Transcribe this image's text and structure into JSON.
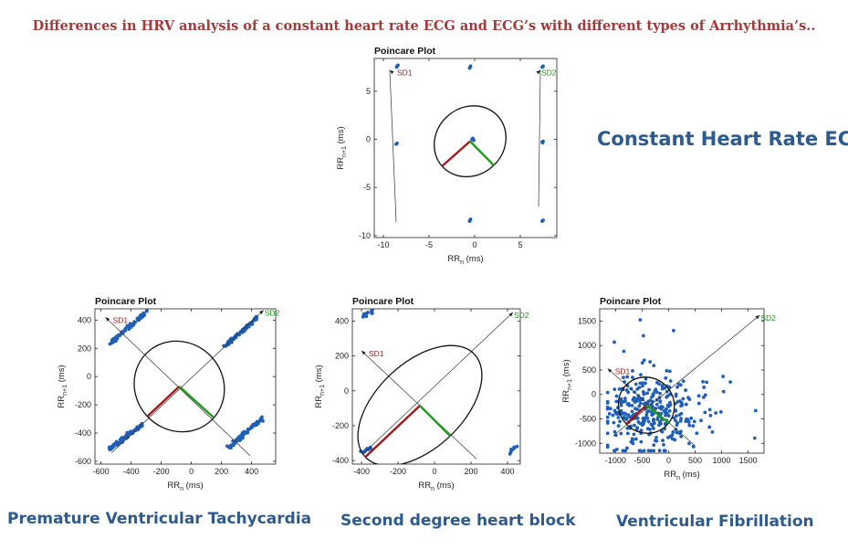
{
  "page_title": "Differences in HRV analysis of a constant heart rate ECG and ECG’s with different types of Arrhythmia’s..",
  "captions": {
    "constant": "Constant Heart Rate ECG",
    "pvt": "Premature Ventricular Tachycardia",
    "shb": "Second degree heart block",
    "vf": "Ventricular Fibrillation"
  },
  "colors": {
    "title": "#a23a3a",
    "caption": "#2e5a8c",
    "points": "#1f5fb5",
    "sd1": "#a01818",
    "sd2": "#1e9a1e",
    "sd1_label": "#8b1a1a",
    "sd2_label": "#1e8f1e"
  },
  "chart_data": [
    {
      "id": "constant",
      "type": "scatter",
      "title": "Poincare Plot",
      "xlabel_main": "RR",
      "xlabel_sub": "n",
      "xlabel_unit": " (ms)",
      "ylabel_main": "RR",
      "ylabel_sub": "n+1",
      "ylabel_unit": " (ms)",
      "xlim": [
        -11,
        9
      ],
      "ylim": [
        -10.2,
        8.4
      ],
      "xticks": [
        -10,
        -5,
        0,
        5
      ],
      "yticks": [
        -10,
        -5,
        0,
        5
      ],
      "center": [
        -0.5,
        -0.2
      ],
      "sd1": 4.0,
      "sd2": 3.6,
      "sd1_end": [
        -9.3,
        7.2
      ],
      "sd2_end": [
        7.2,
        7.2
      ],
      "sd1_tail": [
        -8.6,
        -8.6
      ],
      "sd2_tail": [
        7.0,
        -7.0
      ],
      "sd1_label": "SD1",
      "sd2_label": "SD2",
      "points": [
        [
          -8.5,
          7.6
        ],
        [
          -8.4,
          7.7
        ],
        [
          -8.55,
          7.5
        ],
        [
          -0.5,
          7.5
        ],
        [
          -0.45,
          7.6
        ],
        [
          -0.55,
          7.4
        ],
        [
          7.5,
          7.6
        ],
        [
          7.4,
          7.5
        ],
        [
          -8.6,
          -0.5
        ],
        [
          -8.5,
          -0.4
        ],
        [
          7.4,
          -0.3
        ],
        [
          7.5,
          -0.2
        ],
        [
          7.45,
          -0.35
        ],
        [
          -0.5,
          -8.4
        ],
        [
          -0.45,
          -8.3
        ],
        [
          -0.55,
          -8.5
        ],
        [
          7.4,
          -8.5
        ],
        [
          7.5,
          -8.4
        ],
        [
          -0.3,
          0.0
        ],
        [
          -0.2,
          0.1
        ],
        [
          -0.1,
          -0.1
        ]
      ]
    },
    {
      "id": "pvt",
      "type": "scatter",
      "title": "Poincare Plot",
      "xlabel_main": "RR",
      "xlabel_sub": "n",
      "xlabel_unit": " (ms)",
      "ylabel_main": "RR",
      "ylabel_sub": "n+1",
      "ylabel_unit": " (ms)",
      "xlim": [
        -640,
        560
      ],
      "ylim": [
        -620,
        480
      ],
      "xticks": [
        -600,
        -400,
        -200,
        0,
        200,
        400
      ],
      "yticks": [
        -600,
        -400,
        -200,
        0,
        200,
        400
      ],
      "center": [
        -80,
        -70
      ],
      "sd1": 300,
      "sd2": 320,
      "sd1_end": [
        -570,
        420
      ],
      "sd2_end": [
        480,
        470
      ],
      "sd1_tail": [
        390,
        -560
      ],
      "sd2_tail": [
        -530,
        -540
      ],
      "sd1_label": "SD1",
      "sd2_label": "SD2",
      "clusters": [
        {
          "from": [
            -540,
            230
          ],
          "to": [
            -300,
            460
          ],
          "count": 70
        },
        {
          "from": [
            220,
            210
          ],
          "to": [
            450,
            430
          ],
          "count": 70
        },
        {
          "from": [
            -540,
            -510
          ],
          "to": [
            -310,
            -330
          ],
          "count": 70
        },
        {
          "from": [
            250,
            -500
          ],
          "to": [
            490,
            -280
          ],
          "count": 70
        }
      ]
    },
    {
      "id": "shb",
      "type": "scatter",
      "title": "Poincare Plot",
      "xlabel_main": "RR",
      "xlabel_sub": "n",
      "xlabel_unit": " (ms)",
      "ylabel_main": "RR",
      "ylabel_sub": "n+1",
      "ylabel_unit": " (ms)",
      "xlim": [
        -450,
        470
      ],
      "ylim": [
        -420,
        470
      ],
      "xticks": [
        -400,
        -200,
        0,
        200,
        400
      ],
      "yticks": [
        -400,
        -200,
        0,
        200,
        400
      ],
      "center": [
        -80,
        -85
      ],
      "sd1": 420,
      "sd2": 240,
      "sd1_end": [
        -400,
        230
      ],
      "sd2_end": [
        430,
        450
      ],
      "sd1_tail": [
        230,
        -390
      ],
      "sd2_tail": [
        -380,
        -350
      ],
      "sd1_label": "SD1",
      "sd2_label": "SD2",
      "clusters": [
        {
          "from": [
            -395,
            425
          ],
          "to": [
            -335,
            460
          ],
          "count": 12
        },
        {
          "from": [
            -395,
            -355
          ],
          "to": [
            -345,
            -325
          ],
          "count": 12
        },
        {
          "from": [
            405,
            -355
          ],
          "to": [
            450,
            -320
          ],
          "count": 12
        }
      ]
    },
    {
      "id": "vf",
      "type": "scatter",
      "title": "Poincare Plot",
      "xlabel_main": "RR",
      "xlabel_sub": "n",
      "xlabel_unit": " (ms)",
      "ylabel_main": "RR",
      "ylabel_sub": "n+1",
      "ylabel_unit": " (ms)",
      "xlim": [
        -1300,
        1800
      ],
      "ylim": [
        -1200,
        1750
      ],
      "xticks": [
        -1000,
        -500,
        0,
        500,
        1000,
        1500
      ],
      "yticks": [
        -1000,
        -500,
        0,
        500,
        1000,
        1500
      ],
      "center": [
        -420,
        -220
      ],
      "sd1": 540,
      "sd2": 560,
      "sd1_end": [
        -1150,
        530
      ],
      "sd2_end": [
        1720,
        1620
      ],
      "sd1_tail": [
        500,
        -1050
      ],
      "sd2_tail": [
        -1050,
        -850
      ],
      "sd1_label": "SD1",
      "sd2_label": "SD2",
      "scatter_seed": 11,
      "scatter_count": 330,
      "scatter_center": [
        -300,
        -250
      ],
      "scatter_spread": [
        520,
        480
      ]
    }
  ]
}
